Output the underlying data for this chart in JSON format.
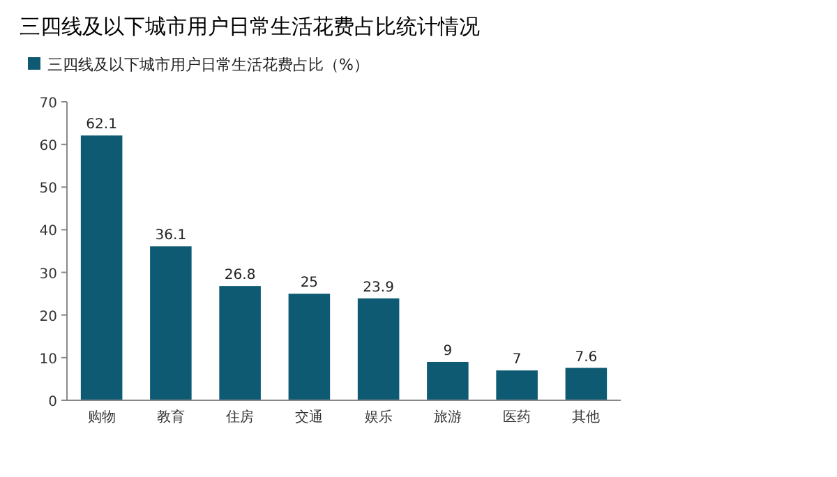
{
  "chart_data": {
    "type": "bar",
    "title": "三四线及以下城市用户日常生活花费占比统计情况",
    "categories": [
      "购物",
      "教育",
      "住房",
      "交通",
      "娱乐",
      "旅游",
      "医药",
      "其他"
    ],
    "series": [
      {
        "name": "三四线及以下城市用户日常生活花费占比（%）",
        "color": "#0e5a73",
        "values": [
          62.1,
          36.1,
          26.8,
          25,
          23.9,
          9,
          7,
          7.6
        ]
      }
    ],
    "ylim": [
      0,
      70
    ],
    "yticks": [
      0,
      10,
      20,
      30,
      40,
      50,
      60,
      70
    ],
    "data_labels": true,
    "legend": "top left",
    "grid": false
  }
}
